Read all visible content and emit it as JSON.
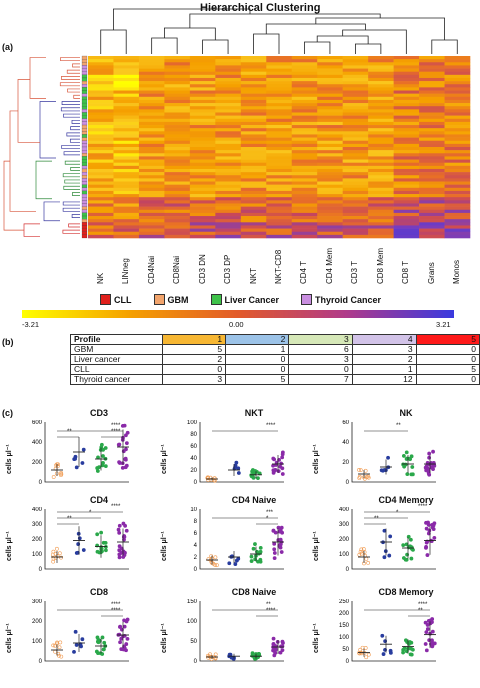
{
  "panel_a": {
    "label": "(a)",
    "title": "Hierarchical Clustering",
    "columns": [
      "NK",
      "LINneg",
      "CD4Nai",
      "CD8Nai",
      "CD3 DN",
      "CD3 DP",
      "NKT",
      "NKT-CD8",
      "CD4 T",
      "CD4 Mem",
      "CD3 T",
      "CD8 Mem",
      "CD8 T",
      "Grans",
      "Monos"
    ],
    "colorbar": {
      "min": "-3.21",
      "mid": "0.00",
      "max": "3.21"
    },
    "legend": [
      {
        "label": "CLL",
        "color": "#e0201c"
      },
      {
        "label": "GBM",
        "color": "#f2a46c"
      },
      {
        "label": "Liver Cancer",
        "color": "#3ec24a"
      },
      {
        "label": "Thyroid Cancer",
        "color": "#c98ee0"
      }
    ],
    "colors": {
      "low": "#ffff00",
      "mid": "#f5a000",
      "high": "#3a3adf"
    }
  },
  "panel_b": {
    "label": "(b)",
    "header": [
      "Profile",
      "1",
      "2",
      "3",
      "4",
      "5"
    ],
    "header_colors": [
      "#ffffff",
      "#f7b733",
      "#9cc3e8",
      "#d6e8b8",
      "#d2c3e8",
      "#ff1a1a"
    ],
    "rows": [
      {
        "name": "GBM",
        "values": [
          "5",
          "1",
          "6",
          "3",
          "0"
        ]
      },
      {
        "name": "Liver cancer",
        "values": [
          "2",
          "0",
          "3",
          "2",
          "0"
        ]
      },
      {
        "name": "CLL",
        "values": [
          "0",
          "0",
          "0",
          "1",
          "5"
        ]
      },
      {
        "name": "Thyroid cancer",
        "values": [
          "3",
          "5",
          "7",
          "12",
          "0"
        ]
      }
    ]
  },
  "panel_c": {
    "label": "(c)",
    "y_label": "cells μl⁻¹",
    "group_colors": [
      "#f09a50",
      "#283c9e",
      "#2aa84a",
      "#8a2aa8"
    ],
    "plots": [
      {
        "title": "CD3",
        "ymax": 600,
        "ticks": [
          "0",
          "200",
          "400",
          "600"
        ],
        "means": [
          120,
          300,
          230,
          350
        ],
        "sigs": [
          {
            "text": "**",
            "a": 0,
            "b": 1,
            "lvl": 1
          },
          {
            "text": "****",
            "a": 0,
            "b": 3,
            "lvl": 2
          },
          {
            "text": "****",
            "a": 2,
            "b": 3,
            "lvl": 1
          }
        ]
      },
      {
        "title": "NKT",
        "ymax": 100,
        "ticks": [
          "0",
          "20",
          "40",
          "60",
          "80",
          "100"
        ],
        "means": [
          5,
          20,
          12,
          30
        ],
        "sigs": [
          {
            "text": "****",
            "a": 0,
            "b": 3,
            "lvl": 2
          }
        ]
      },
      {
        "title": "NK",
        "ymax": 60,
        "ticks": [
          "0",
          "20",
          "40",
          "60"
        ],
        "means": [
          8,
          15,
          18,
          18
        ],
        "sigs": [
          {
            "text": "**",
            "a": 0,
            "b": 2,
            "lvl": 2
          }
        ]
      },
      {
        "title": "CD4",
        "ymax": 400,
        "ticks": [
          "0",
          "100",
          "200",
          "300",
          "400"
        ],
        "means": [
          80,
          190,
          150,
          180
        ],
        "sigs": [
          {
            "text": "**",
            "a": 0,
            "b": 1,
            "lvl": 1
          },
          {
            "text": "*",
            "a": 0,
            "b": 2,
            "lvl": 2
          },
          {
            "text": "****",
            "a": 0,
            "b": 3,
            "lvl": 3
          }
        ]
      },
      {
        "title": "CD4 Naive",
        "ymax": 10,
        "ticks": [
          "0",
          "2",
          "4",
          "6",
          "8",
          "10"
        ],
        "means": [
          1.5,
          2,
          2.5,
          4.5
        ],
        "sigs": [
          {
            "text": "*",
            "a": 2,
            "b": 3,
            "lvl": 1
          },
          {
            "text": "***",
            "a": 0,
            "b": 3,
            "lvl": 2
          }
        ]
      },
      {
        "title": "CD4 Memory",
        "ymax": 400,
        "ticks": [
          "0",
          "100",
          "200",
          "300",
          "400"
        ],
        "means": [
          80,
          180,
          140,
          190
        ],
        "sigs": [
          {
            "text": "**",
            "a": 0,
            "b": 1,
            "lvl": 1
          },
          {
            "text": "*",
            "a": 0,
            "b": 2,
            "lvl": 2
          },
          {
            "text": "****",
            "a": 0,
            "b": 3,
            "lvl": 3
          }
        ]
      },
      {
        "title": "CD8",
        "ymax": 300,
        "ticks": [
          "0",
          "100",
          "200",
          "300"
        ],
        "means": [
          55,
          90,
          75,
          130
        ],
        "sigs": [
          {
            "text": "****",
            "a": 2,
            "b": 3,
            "lvl": 1
          },
          {
            "text": "****",
            "a": 0,
            "b": 3,
            "lvl": 2
          }
        ]
      },
      {
        "title": "CD8 Naive",
        "ymax": 150,
        "ticks": [
          "0",
          "50",
          "100",
          "150"
        ],
        "means": [
          10,
          12,
          12,
          35
        ],
        "sigs": [
          {
            "text": "****",
            "a": 2,
            "b": 3,
            "lvl": 1
          },
          {
            "text": "**",
            "a": 0,
            "b": 3,
            "lvl": 2
          }
        ]
      },
      {
        "title": "CD8 Memory",
        "ymax": 250,
        "ticks": [
          "0",
          "50",
          "100",
          "150",
          "200",
          "250"
        ],
        "means": [
          35,
          70,
          60,
          110
        ],
        "sigs": [
          {
            "text": "**",
            "a": 2,
            "b": 3,
            "lvl": 1
          },
          {
            "text": "****",
            "a": 0,
            "b": 3,
            "lvl": 2
          }
        ]
      }
    ]
  }
}
